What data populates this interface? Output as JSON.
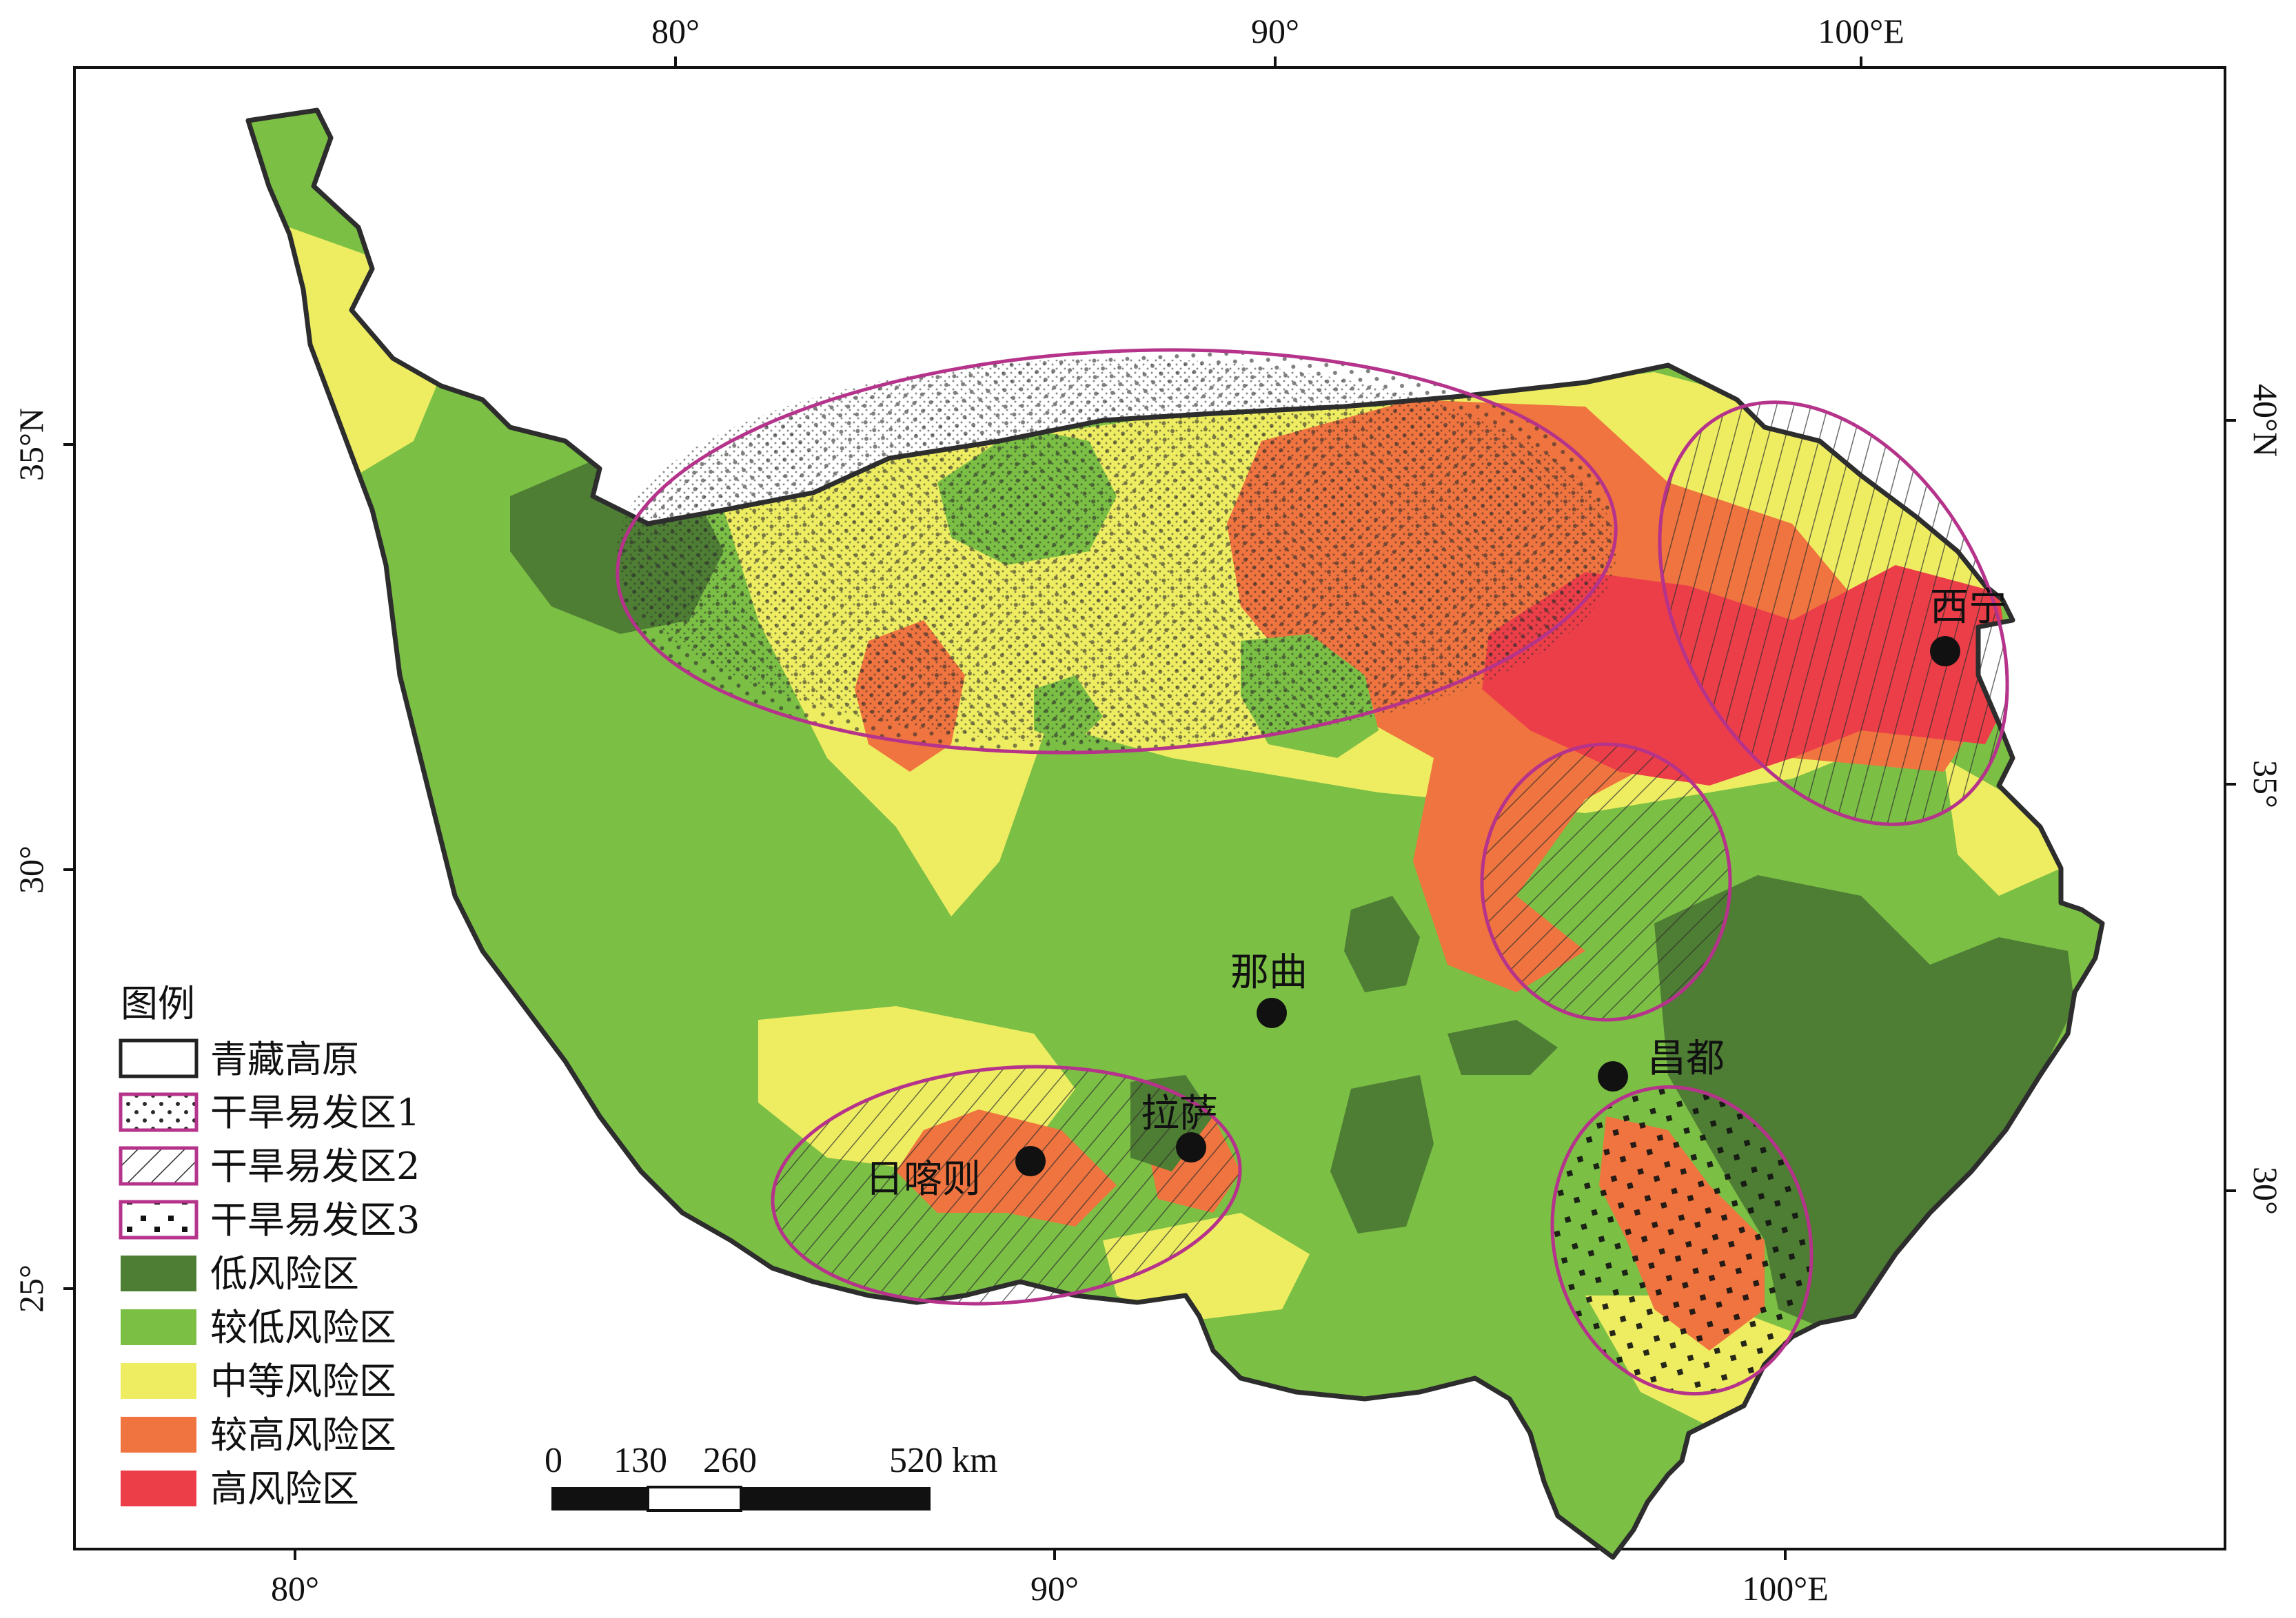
{
  "map": {
    "top_axis": [
      "80°",
      "90°",
      "100°E"
    ],
    "bottom_axis": [
      "80°",
      "90°",
      "100°E"
    ],
    "left_axis": [
      "35°N",
      "30°",
      "25°"
    ],
    "right_axis": [
      "40°N",
      "35°",
      "30°"
    ]
  },
  "cities": [
    {
      "name": "西宁"
    },
    {
      "name": "那曲"
    },
    {
      "name": "昌都"
    },
    {
      "name": "拉萨"
    },
    {
      "name": "日喀则"
    }
  ],
  "legend": {
    "title": "图例",
    "items": [
      {
        "label": "青藏高原",
        "kind": "outline"
      },
      {
        "label": "干旱易发区1",
        "kind": "dots"
      },
      {
        "label": "干旱易发区2",
        "kind": "hatch"
      },
      {
        "label": "干旱易发区3",
        "kind": "squares"
      },
      {
        "label": "低风险区",
        "color": "#4e7d34"
      },
      {
        "label": "较低风险区",
        "color": "#7bbf45"
      },
      {
        "label": "中等风险区",
        "color": "#eeed62"
      },
      {
        "label": "较高风险区",
        "color": "#f0743f"
      },
      {
        "label": "高风险区",
        "color": "#ec3e48"
      }
    ]
  },
  "scale_bar": {
    "labels": [
      "0",
      "130",
      "260",
      "520 km"
    ]
  },
  "colors": {
    "low": "#4e7d34",
    "lower": "#7bbf45",
    "medium": "#eeed62",
    "higher": "#f0743f",
    "high": "#ec3e48",
    "zone_outline": "#b5338a"
  }
}
